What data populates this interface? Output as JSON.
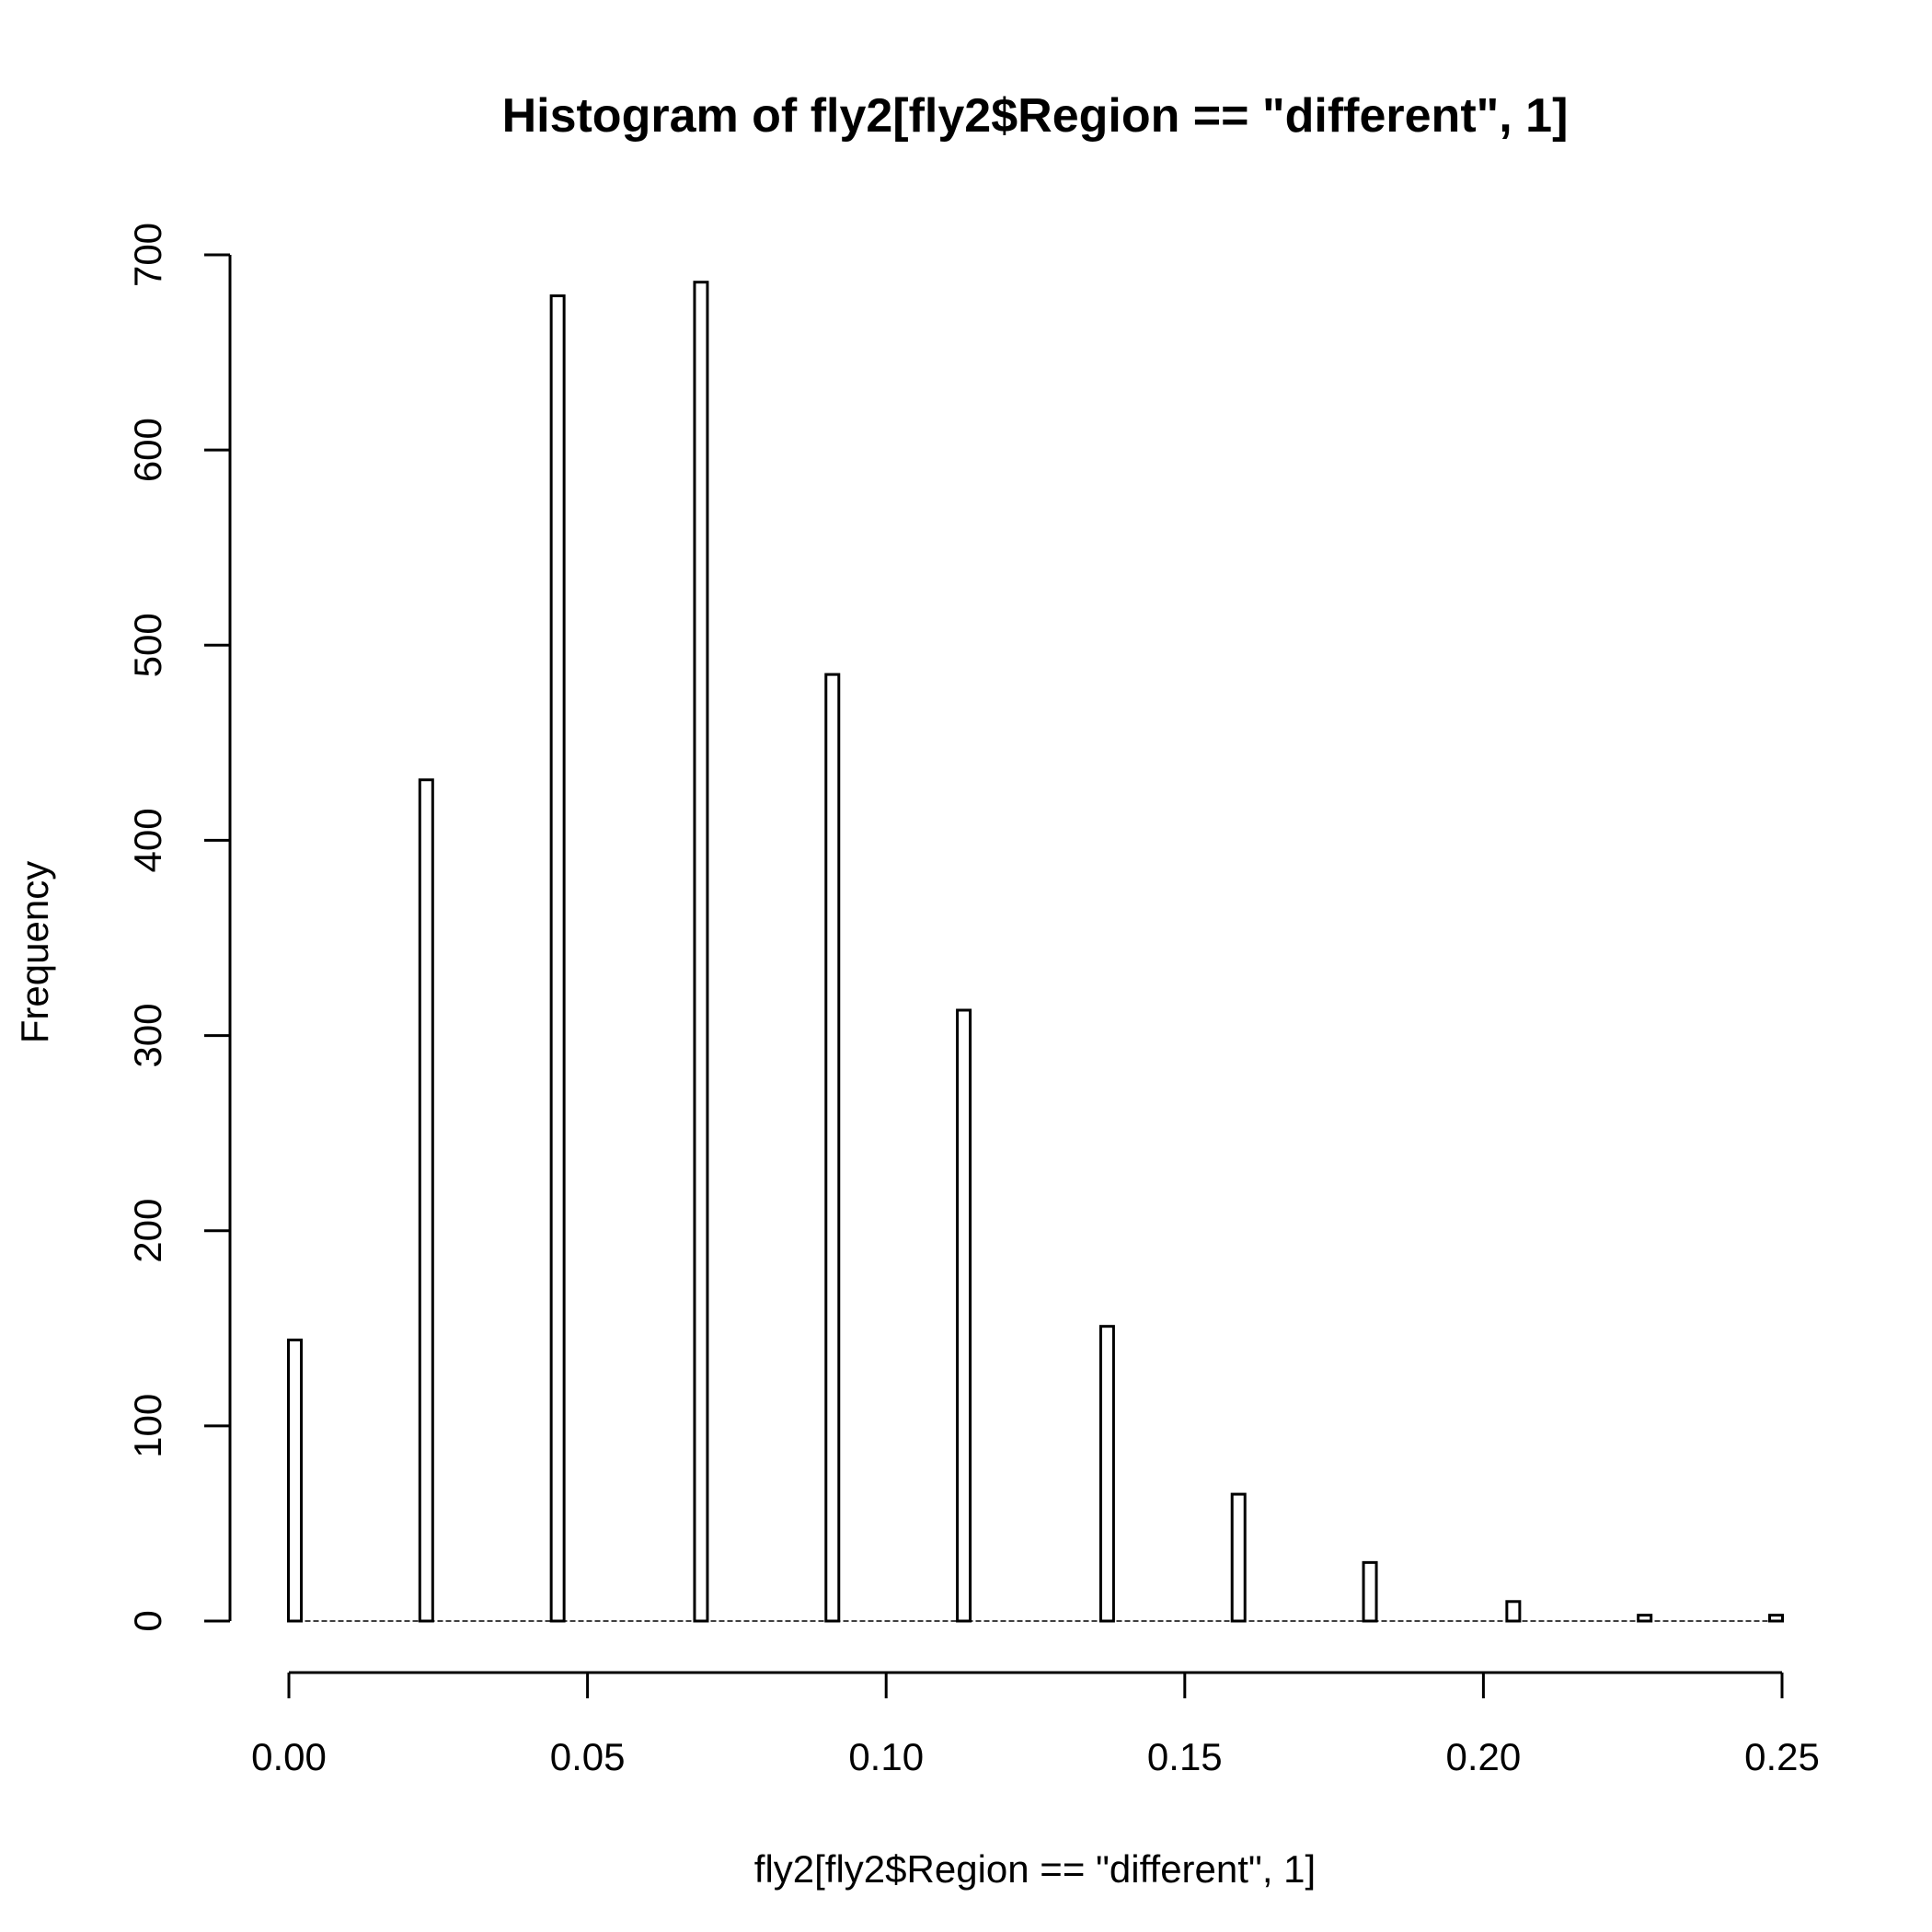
{
  "chart_data": {
    "type": "bar",
    "title": "Histogram of fly2[fly2$Region == \"different\", 1]",
    "xlabel": "fly2[fly2$Region == \"different\", 1]",
    "ylabel": "Frequency",
    "xlim": [
      0,
      0.25
    ],
    "ylim": [
      0,
      700
    ],
    "x_ticks": [
      0.0,
      0.05,
      0.1,
      0.15,
      0.2,
      0.25
    ],
    "x_tick_labels": [
      "0.00",
      "0.05",
      "0.10",
      "0.15",
      "0.20",
      "0.25"
    ],
    "y_ticks": [
      0,
      100,
      200,
      300,
      400,
      500,
      600,
      700
    ],
    "y_tick_labels": [
      "0",
      "100",
      "200",
      "300",
      "400",
      "500",
      "600",
      "700"
    ],
    "grid": false,
    "bars": [
      {
        "x": 0.001,
        "value": 144
      },
      {
        "x": 0.023,
        "value": 431
      },
      {
        "x": 0.045,
        "value": 679
      },
      {
        "x": 0.069,
        "value": 686
      },
      {
        "x": 0.091,
        "value": 485
      },
      {
        "x": 0.113,
        "value": 313
      },
      {
        "x": 0.137,
        "value": 151
      },
      {
        "x": 0.159,
        "value": 65
      },
      {
        "x": 0.181,
        "value": 30
      },
      {
        "x": 0.205,
        "value": 10
      },
      {
        "x": 0.227,
        "value": 3
      },
      {
        "x": 0.249,
        "value": 3
      }
    ]
  }
}
